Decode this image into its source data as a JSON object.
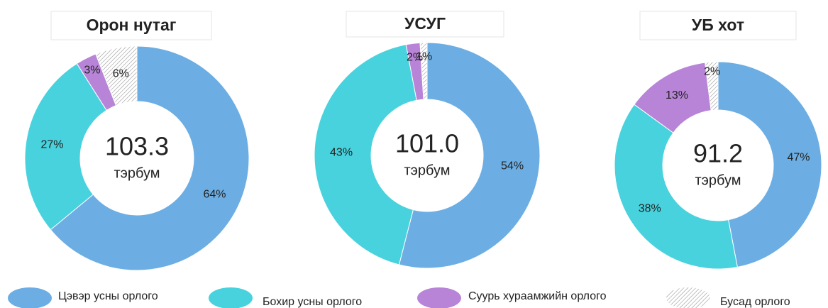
{
  "chart_data": [
    {
      "type": "donut",
      "title": "Орон нутаг",
      "center_text": "103.3",
      "center_unit": "тэрбум",
      "values": [
        64,
        27,
        3,
        6
      ]
    },
    {
      "type": "donut",
      "title": "УСУГ",
      "center_text": "101.0",
      "center_unit": "тэрбум",
      "values": [
        54,
        43,
        2,
        1
      ]
    },
    {
      "type": "donut",
      "title": "УБ хот",
      "center_text": "91.2",
      "center_unit": "тэрбум",
      "values": [
        47,
        38,
        13,
        2
      ]
    }
  ],
  "legend": [
    {
      "name": "Цэвэр усны орлого",
      "color": "#6caee3"
    },
    {
      "name": "Бохир усны орлого",
      "color": "#48d2dd"
    },
    {
      "name": "Суурь хураамжийн орлого",
      "color": "#b884d8"
    },
    {
      "name": "Бусад орлого",
      "color": "hatch"
    }
  ]
}
